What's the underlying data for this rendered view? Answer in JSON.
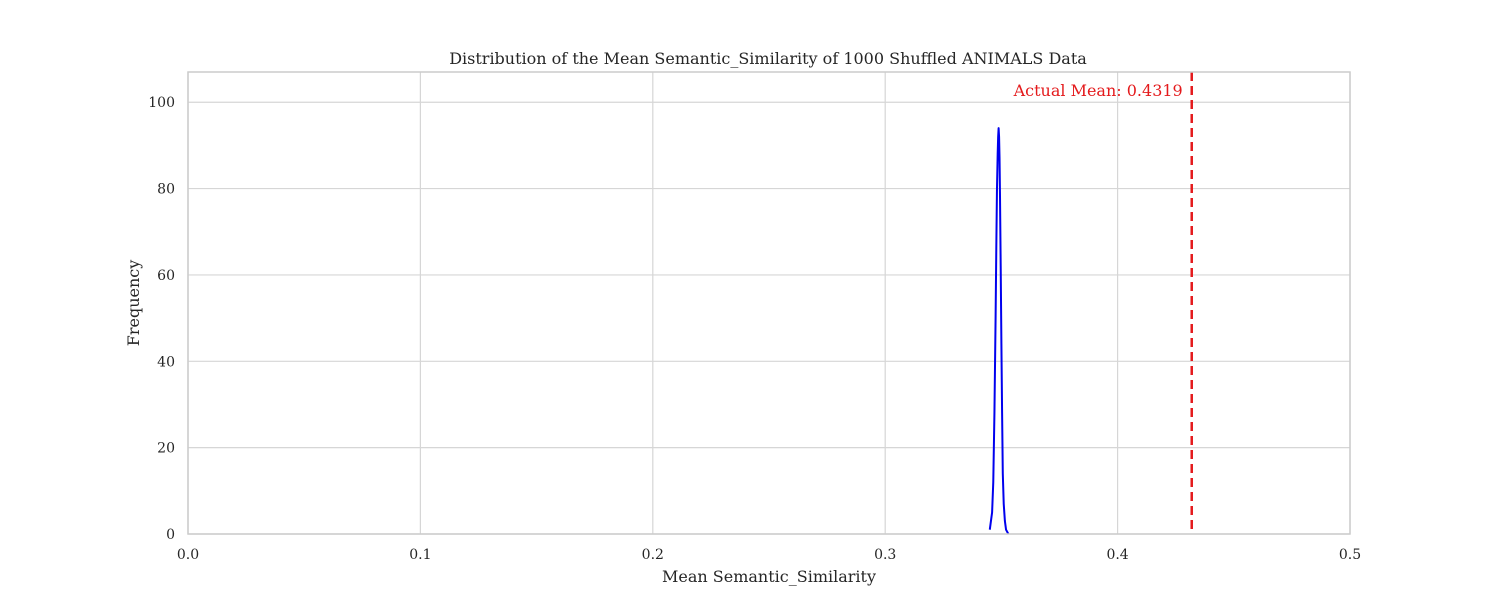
{
  "chart_data": {
    "type": "line",
    "title": "Distribution of the Mean Semantic_Similarity of 1000 Shuffled ANIMALS Data",
    "xlabel": "Mean Semantic_Similarity",
    "ylabel": "Frequency",
    "xlim": [
      0.0,
      0.5
    ],
    "ylim": [
      0,
      107
    ],
    "xticks": [
      "0.0",
      "0.1",
      "0.2",
      "0.3",
      "0.4",
      "0.5"
    ],
    "yticks": [
      "0",
      "20",
      "40",
      "60",
      "80",
      "100"
    ],
    "grid": true,
    "series": [
      {
        "color": "#0000ee",
        "x": [
          0.345,
          0.346,
          0.3465,
          0.347,
          0.3475,
          0.3478,
          0.3481,
          0.3484,
          0.3486,
          0.3488,
          0.349,
          0.3492,
          0.3494,
          0.3497,
          0.35,
          0.3503,
          0.3506,
          0.351,
          0.3515,
          0.352,
          0.353
        ],
        "y": [
          1,
          5,
          12,
          28,
          50,
          66,
          80,
          88,
          92,
          94,
          92,
          87,
          78,
          62,
          44,
          28,
          14,
          7,
          3,
          1,
          0
        ]
      }
    ],
    "annotations": [
      {
        "kind": "vline",
        "x": 0.4319,
        "color": "#e41a1c",
        "style": "dashed",
        "label": "Actual Mean: 0.4319"
      }
    ]
  }
}
